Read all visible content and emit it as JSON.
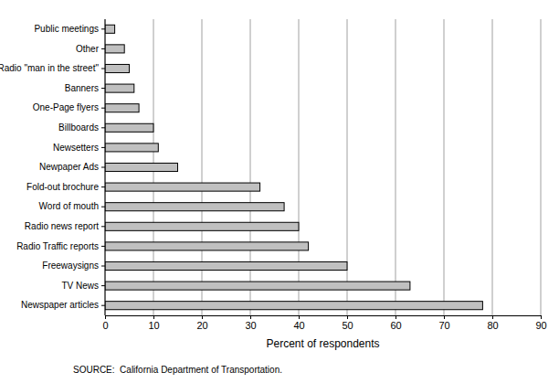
{
  "chart_data": {
    "type": "bar",
    "orientation": "horizontal",
    "categories": [
      "Public meetings",
      "Other",
      "Radio \"man in the street\"",
      "Banners",
      "One-Page flyers",
      "Billboards",
      "Newsetters",
      "Newpaper Ads",
      "Fold-out brochure",
      "Word of mouth",
      "Radio news report",
      "Radio Traffic reports",
      "Freewaysigns",
      "TV News",
      "Newspaper articles"
    ],
    "values": [
      2,
      4,
      5,
      6,
      7,
      10,
      11,
      15,
      32,
      37,
      40,
      42,
      50,
      63,
      78
    ],
    "color": "#c0c0c0",
    "x_label": "Percent of respondents",
    "xlim": [
      0,
      90
    ],
    "xticks": [
      0,
      10,
      20,
      30,
      40,
      50,
      60,
      70,
      80,
      90
    ],
    "grid": true,
    "annotations": [
      "SOURCE:  California Department of Transportation."
    ]
  }
}
